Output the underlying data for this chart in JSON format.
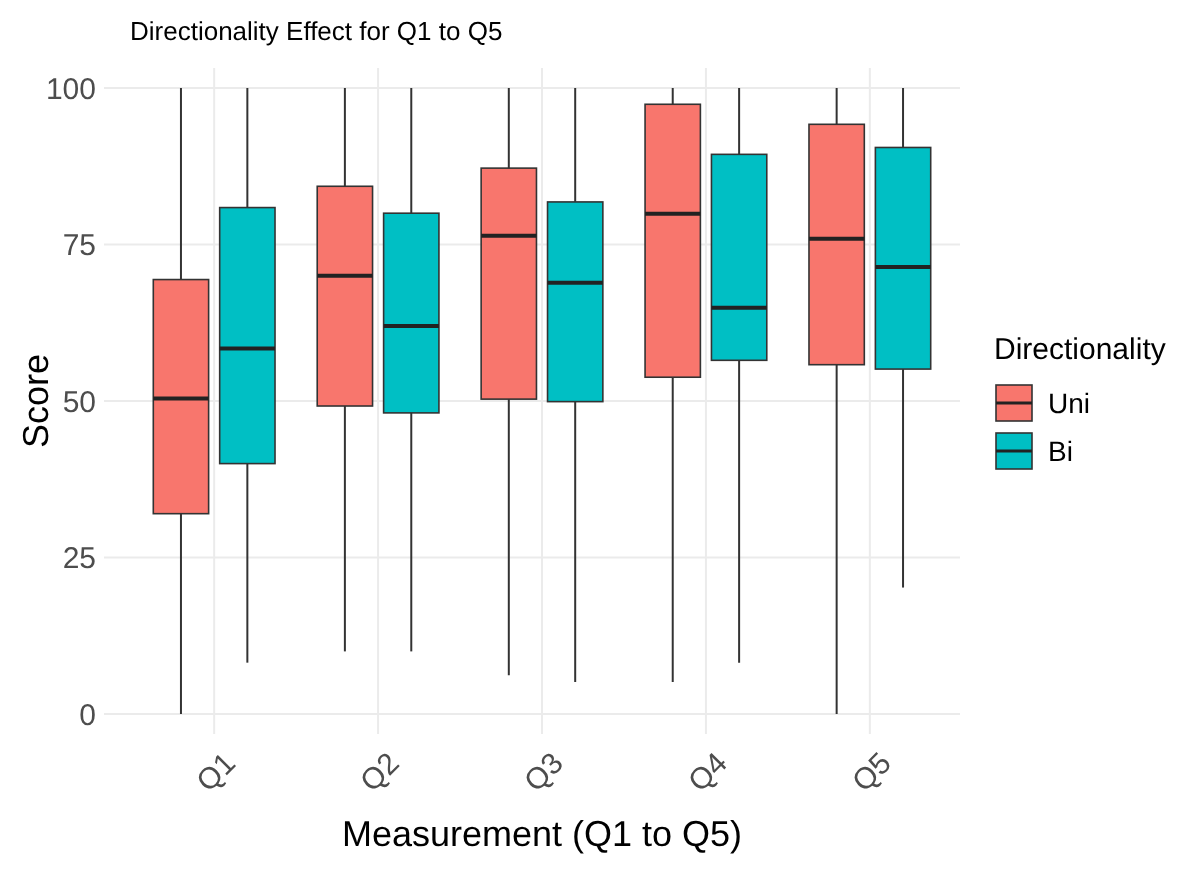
{
  "chart_data": {
    "type": "box",
    "title": "Directionality Effect for Q1 to Q5",
    "xlabel": "Measurement (Q1 to Q5)",
    "ylabel": "Score",
    "legend_title": "Directionality",
    "categories": [
      "Q1",
      "Q2",
      "Q3",
      "Q4",
      "Q5"
    ],
    "ylim": [
      0,
      100
    ],
    "yticks": [
      0,
      25,
      50,
      75,
      100
    ],
    "grid": true,
    "legend": "right",
    "series": [
      {
        "name": "Uni",
        "color": "#f8766d",
        "boxes": [
          {
            "low": 0,
            "q1": 32,
            "median": 50.4,
            "q3": 69.4,
            "high": 100
          },
          {
            "low": 10,
            "q1": 49.2,
            "median": 70,
            "q3": 84.3,
            "high": 100
          },
          {
            "low": 6.2,
            "q1": 50.3,
            "median": 76.4,
            "q3": 87.2,
            "high": 100
          },
          {
            "low": 5.1,
            "q1": 53.8,
            "median": 79.9,
            "q3": 97.4,
            "high": 100
          },
          {
            "low": 0,
            "q1": 55.8,
            "median": 75.9,
            "q3": 94.2,
            "high": 100
          }
        ]
      },
      {
        "name": "Bi",
        "color": "#00bfc4",
        "boxes": [
          {
            "low": 8.2,
            "q1": 40,
            "median": 58.4,
            "q3": 80.9,
            "high": 100
          },
          {
            "low": 10,
            "q1": 48.1,
            "median": 62,
            "q3": 80,
            "high": 100
          },
          {
            "low": 5.1,
            "q1": 49.9,
            "median": 68.9,
            "q3": 81.8,
            "high": 100
          },
          {
            "low": 8.2,
            "q1": 56.5,
            "median": 64.9,
            "q3": 89.4,
            "high": 100
          },
          {
            "low": 20.2,
            "q1": 55.1,
            "median": 71.4,
            "q3": 90.5,
            "high": 100
          }
        ]
      }
    ]
  }
}
